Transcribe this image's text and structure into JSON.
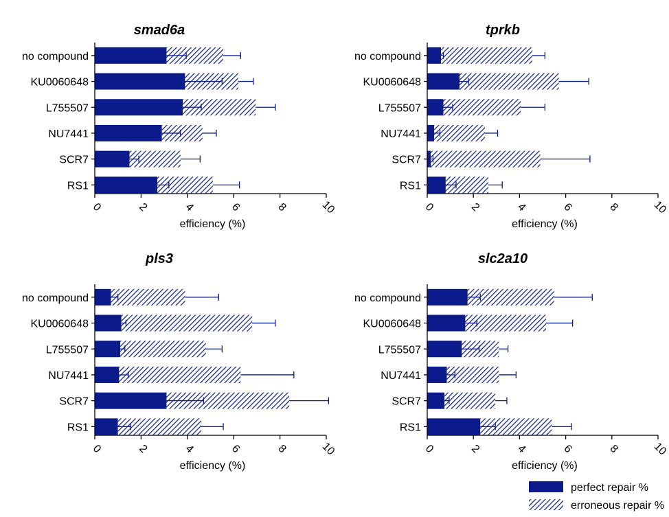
{
  "colors": {
    "bar": "#0b1b8c",
    "hatch": "#0b1b8c",
    "axis": "#000000"
  },
  "legend": {
    "position": "bottom-right",
    "items": [
      {
        "label": "perfect repair %",
        "style": "solid"
      },
      {
        "label": "erroneous repair %",
        "style": "hatched"
      }
    ]
  },
  "chart_data": [
    {
      "type": "bar",
      "orientation": "horizontal",
      "stacked": true,
      "title": "smad6a",
      "xlabel": "efficiency (%)",
      "xlim": [
        0,
        10
      ],
      "xticks": [
        0,
        2,
        4,
        6,
        8,
        10
      ],
      "categories": [
        "no compound",
        "KU0060648",
        "L755507",
        "NU7441",
        "SCR7",
        "RS1"
      ],
      "series": [
        {
          "name": "perfect repair %",
          "values": [
            3.1,
            3.9,
            3.8,
            2.9,
            1.5,
            2.7
          ],
          "errors": [
            0.85,
            1.6,
            0.8,
            0.8,
            0.4,
            0.5
          ]
        },
        {
          "name": "erroneous repair %",
          "values": [
            2.45,
            2.3,
            3.15,
            1.75,
            2.2,
            2.4
          ],
          "errors": [
            0.75,
            0.65,
            0.85,
            0.6,
            0.85,
            1.15
          ]
        }
      ]
    },
    {
      "type": "bar",
      "orientation": "horizontal",
      "stacked": true,
      "title": "tprkb",
      "xlabel": "efficiency (%)",
      "xlim": [
        0,
        10
      ],
      "xticks": [
        0,
        2,
        4,
        6,
        8,
        10
      ],
      "categories": [
        "no compound",
        "KU0060648",
        "L755507",
        "NU7441",
        "SCR7",
        "RS1"
      ],
      "series": [
        {
          "name": "perfect repair %",
          "values": [
            0.6,
            1.4,
            0.7,
            0.3,
            0.15,
            0.8
          ],
          "errors": [
            0.1,
            0.4,
            0.4,
            0.25,
            0.1,
            0.45
          ]
        },
        {
          "name": "erroneous repair %",
          "values": [
            3.95,
            4.3,
            3.35,
            2.2,
            4.75,
            1.85
          ],
          "errors": [
            0.55,
            1.3,
            1.05,
            0.55,
            2.15,
            0.6
          ]
        }
      ]
    },
    {
      "type": "bar",
      "orientation": "horizontal",
      "stacked": true,
      "title": "pls3",
      "xlabel": "efficiency (%)",
      "xlim": [
        0,
        10
      ],
      "xticks": [
        0,
        2,
        4,
        6,
        8,
        10
      ],
      "categories": [
        "no compound",
        "KU0060648",
        "L755507",
        "NU7441",
        "SCR7",
        "RS1"
      ],
      "series": [
        {
          "name": "perfect repair %",
          "values": [
            0.7,
            1.15,
            1.1,
            1.05,
            3.1,
            1.0
          ],
          "errors": [
            0.3,
            0.2,
            0.2,
            0.4,
            1.6,
            0.55
          ]
        },
        {
          "name": "erroneous repair %",
          "values": [
            3.2,
            5.65,
            3.7,
            5.25,
            5.3,
            3.6
          ],
          "errors": [
            1.45,
            1.0,
            0.7,
            2.3,
            1.7,
            0.95
          ]
        }
      ]
    },
    {
      "type": "bar",
      "orientation": "horizontal",
      "stacked": true,
      "title": "slc2a10",
      "xlabel": "efficiency (%)",
      "xlim": [
        0,
        10
      ],
      "xticks": [
        0,
        2,
        4,
        6,
        8,
        10
      ],
      "categories": [
        "no compound",
        "KU0060648",
        "L755507",
        "NU7441",
        "SCR7",
        "RS1"
      ],
      "series": [
        {
          "name": "perfect repair %",
          "values": [
            1.75,
            1.65,
            1.5,
            0.85,
            0.75,
            2.3
          ],
          "errors": [
            0.55,
            0.5,
            0.75,
            0.35,
            0.2,
            0.65
          ]
        },
        {
          "name": "erroneous repair %",
          "values": [
            3.75,
            3.5,
            1.6,
            2.25,
            2.2,
            3.1
          ],
          "errors": [
            1.65,
            1.15,
            0.4,
            0.75,
            0.5,
            0.85
          ]
        }
      ]
    }
  ]
}
